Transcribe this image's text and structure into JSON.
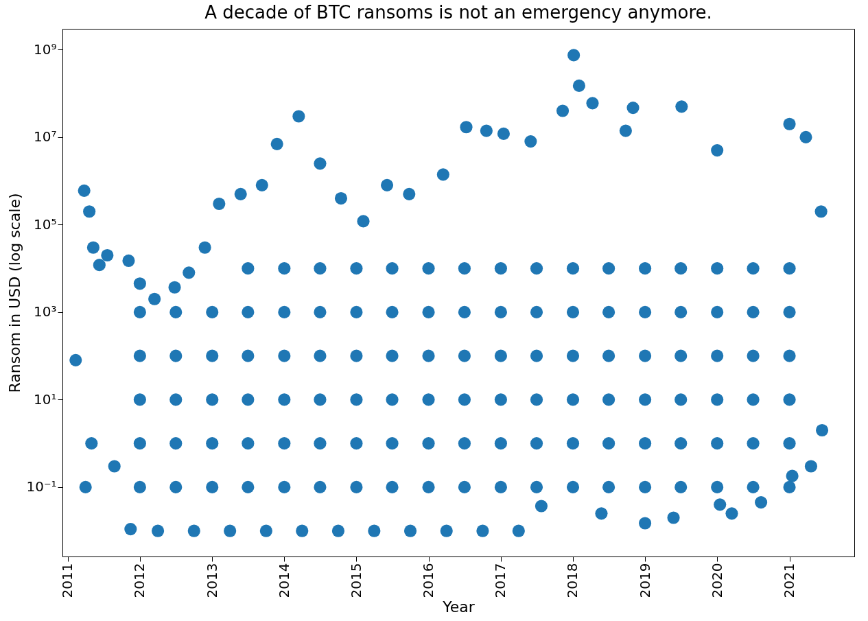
{
  "chart_data": {
    "type": "scatter",
    "title": "A decade of BTC ransoms is not an emergency anymore.",
    "xlabel": "Year",
    "ylabel": "Ransom in USD (log scale)",
    "log": true,
    "grid": false,
    "marker": "circle",
    "color": "#1f77b4",
    "xlim": [
      "2010-12-05",
      "2021-11-25"
    ],
    "xticks": [
      {
        "value": "2011",
        "label": "2011"
      },
      {
        "value": "2012",
        "label": "2012"
      },
      {
        "value": "2013",
        "label": "2013"
      },
      {
        "value": "2014",
        "label": "2014"
      },
      {
        "value": "2015",
        "label": "2015"
      },
      {
        "value": "2016",
        "label": "2016"
      },
      {
        "value": "2017",
        "label": "2017"
      },
      {
        "value": "2018",
        "label": "2018"
      },
      {
        "value": "2019",
        "label": "2019"
      },
      {
        "value": "2020",
        "label": "2020"
      },
      {
        "value": "2021",
        "label": "2021"
      }
    ],
    "ylim": [
      0.0026,
      3000000000
    ],
    "yticks": [
      {
        "value": 0.1,
        "label": "10⁻¹"
      },
      {
        "value": 10,
        "label": "10¹"
      },
      {
        "value": 1000,
        "label": "10³"
      },
      {
        "value": 100000,
        "label": "10⁵"
      },
      {
        "value": 10000000,
        "label": "10⁷"
      },
      {
        "value": 1000000000,
        "label": "10⁹"
      }
    ],
    "x": [
      "2011-02-10",
      "2011-03-25",
      "2011-04-20",
      "2011-05-10",
      "2011-06-10",
      "2011-07-20",
      "2011-11-05",
      "2012-01-01",
      "2012-03-15",
      "2012-06-25",
      "2012-09-05",
      "2012-11-25",
      "2013-02-05",
      "2013-05-25",
      "2013-09-10",
      "2013-11-25",
      "2014-03-15",
      "2014-07-01",
      "2014-10-15",
      "2015-02-05",
      "2015-06-05",
      "2015-09-25",
      "2016-03-15",
      "2016-07-10",
      "2016-10-20",
      "2017-01-15",
      "2017-06-01",
      "2017-11-10",
      "2018-01-05",
      "2018-02-01",
      "2018-04-10",
      "2018-09-25",
      "2018-11-01",
      "2019-07-05",
      "2020-01-01",
      "2021-01-01",
      "2021-03-25",
      "2021-06-10",
      "2011-04-01",
      "2011-05-01",
      "2011-08-25",
      "2011-11-15",
      "2012-04-01",
      "2012-10-01",
      "2013-04-01",
      "2013-10-01",
      "2014-04-01",
      "2014-10-01",
      "2015-04-01",
      "2015-10-01",
      "2016-04-01",
      "2016-10-01",
      "2017-04-01",
      "2017-07-25",
      "2018-05-25",
      "2019-01-01",
      "2019-05-25",
      "2020-01-15",
      "2020-03-15",
      "2020-08-10",
      "2021-01-15",
      "2021-04-20",
      "2021-06-15",
      "2012-01-01",
      "2012-07-01",
      "2013-01-01",
      "2013-07-01",
      "2014-01-01",
      "2014-07-01",
      "2015-01-01",
      "2015-07-01",
      "2016-01-01",
      "2016-07-01",
      "2017-01-01",
      "2017-07-01",
      "2018-01-01",
      "2018-07-01",
      "2019-01-01",
      "2019-07-01",
      "2020-01-01",
      "2020-07-01",
      "2021-01-01",
      "2012-01-01",
      "2012-07-01",
      "2013-01-01",
      "2013-07-01",
      "2014-01-01",
      "2014-07-01",
      "2015-01-01",
      "2015-07-01",
      "2016-01-01",
      "2016-07-01",
      "2017-01-01",
      "2017-07-01",
      "2018-01-01",
      "2018-07-01",
      "2019-01-01",
      "2019-07-01",
      "2020-01-01",
      "2020-07-01",
      "2021-01-01",
      "2013-07-01",
      "2014-01-01",
      "2014-07-01",
      "2015-01-01",
      "2015-07-01",
      "2016-01-01",
      "2016-07-01",
      "2017-01-01",
      "2017-07-01",
      "2018-01-01",
      "2018-07-01",
      "2019-01-01",
      "2019-07-01",
      "2020-01-01",
      "2020-07-01",
      "2021-01-01",
      "2012-01-01",
      "2012-07-01",
      "2013-01-01",
      "2013-07-01",
      "2014-01-01",
      "2014-07-01",
      "2015-01-01",
      "2015-07-01",
      "2016-01-01",
      "2016-07-01",
      "2017-01-01",
      "2017-07-01",
      "2018-01-01",
      "2018-07-01",
      "2019-01-01",
      "2019-07-01",
      "2020-01-01",
      "2020-07-01",
      "2021-01-01",
      "2012-01-01",
      "2012-07-01",
      "2013-01-01",
      "2013-07-01",
      "2014-01-01",
      "2014-07-01",
      "2015-01-01",
      "2015-07-01",
      "2016-01-01",
      "2016-07-01",
      "2017-01-01",
      "2017-07-01",
      "2018-01-01",
      "2018-07-01",
      "2019-01-01",
      "2019-07-01",
      "2020-01-01",
      "2020-07-01",
      "2021-01-01",
      "2012-01-01",
      "2012-07-01",
      "2013-01-01",
      "2013-07-01",
      "2014-01-01",
      "2014-07-01",
      "2015-01-01",
      "2015-07-01",
      "2016-01-01",
      "2016-07-01",
      "2017-01-01",
      "2017-07-01",
      "2018-01-01",
      "2018-07-01",
      "2019-01-01",
      "2019-07-01",
      "2020-01-01",
      "2020-07-01",
      "2021-01-01"
    ],
    "values": [
      80,
      600000,
      200000,
      30000,
      12000,
      20000,
      15000,
      4500,
      2000,
      3700,
      8000,
      30000,
      300000,
      500000,
      800000,
      7000000,
      30000000,
      2500000,
      400000,
      120000,
      800000,
      500000,
      1400000,
      17000000,
      14000000,
      12000000,
      8000000,
      40000000,
      750000000,
      150000000,
      60000000,
      14000000,
      47000000,
      50000000,
      5000000,
      20000000,
      10000000,
      200000,
      0.1,
      1,
      0.3,
      0.011,
      0.01,
      0.01,
      0.01,
      0.01,
      0.01,
      0.01,
      0.01,
      0.01,
      0.01,
      0.01,
      0.01,
      0.037,
      0.025,
      0.015,
      0.02,
      0.04,
      0.025,
      0.045,
      0.18,
      0.3,
      2,
      1,
      1,
      1,
      1,
      1,
      1,
      1,
      1,
      1,
      1,
      1,
      1,
      1,
      1,
      1,
      1,
      1,
      1,
      1,
      100,
      100,
      100,
      100,
      100,
      100,
      100,
      100,
      100,
      100,
      100,
      100,
      100,
      100,
      100,
      100,
      100,
      100,
      100,
      10000,
      10000,
      10000,
      10000,
      10000,
      10000,
      10000,
      10000,
      10000,
      10000,
      10000,
      10000,
      10000,
      10000,
      10000,
      10000,
      0.1,
      0.1,
      0.1,
      0.1,
      0.1,
      0.1,
      0.1,
      0.1,
      0.1,
      0.1,
      0.1,
      0.1,
      0.1,
      0.1,
      0.1,
      0.1,
      0.1,
      0.1,
      0.1,
      10,
      10,
      10,
      10,
      10,
      10,
      10,
      10,
      10,
      10,
      10,
      10,
      10,
      10,
      10,
      10,
      10,
      10,
      10,
      1000,
      1000,
      1000,
      1000,
      1000,
      1000,
      1000,
      1000,
      1000,
      1000,
      1000,
      1000,
      1000,
      1000,
      1000,
      1000,
      1000,
      1000,
      1000
    ]
  }
}
